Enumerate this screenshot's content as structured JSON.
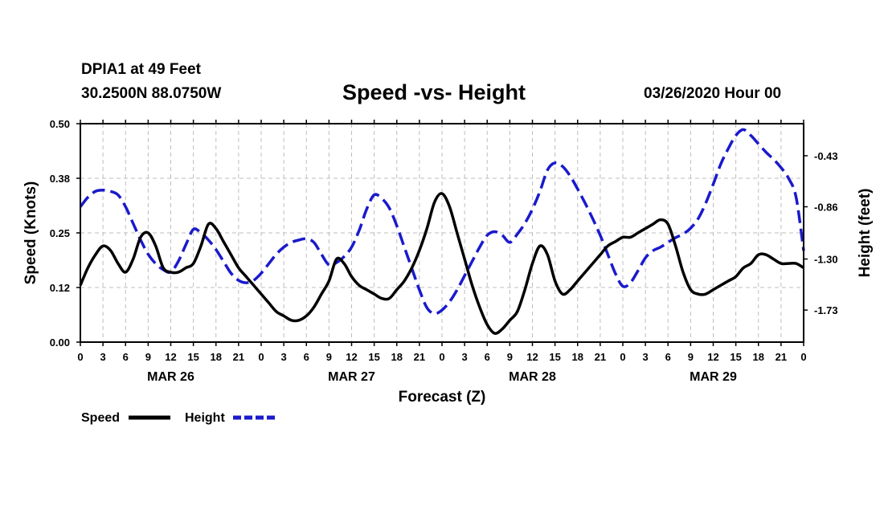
{
  "header": {
    "station": "DPIA1 at 49 Feet",
    "coords": "30.2500N 88.0750W",
    "title": "Speed -vs- Height",
    "run": "03/26/2020 Hour 00"
  },
  "colors": {
    "speed": "#000000",
    "height": "#1a1acc",
    "grid": "#bdbdbd"
  },
  "chart_data": {
    "type": "line",
    "title": "Speed -vs- Height",
    "xlabel": "Forecast (Z)",
    "ylabel": "Speed (Knots)",
    "y2label": "Height (feet)",
    "xlim": [
      0,
      96
    ],
    "ylim": [
      0,
      0.5
    ],
    "y2lim": [
      -2.0,
      -0.16
    ],
    "x_tick_hours": [
      0,
      3,
      6,
      9,
      12,
      15,
      18,
      21,
      24,
      27,
      30,
      33,
      36,
      39,
      42,
      45,
      48,
      51,
      54,
      57,
      60,
      63,
      66,
      69,
      72,
      75,
      78,
      81,
      84,
      87,
      90,
      93,
      96
    ],
    "x_tick_labels": [
      "0",
      "3",
      "6",
      "9",
      "12",
      "15",
      "18",
      "21",
      "0",
      "3",
      "6",
      "9",
      "12",
      "15",
      "18",
      "21",
      "0",
      "3",
      "6",
      "9",
      "12",
      "15",
      "18",
      "21",
      "0",
      "3",
      "6",
      "9",
      "12",
      "15",
      "18",
      "21",
      "0"
    ],
    "day_labels": [
      {
        "hour": 12,
        "text": "MAR 26"
      },
      {
        "hour": 36,
        "text": "MAR 27"
      },
      {
        "hour": 60,
        "text": "MAR 28"
      },
      {
        "hour": 84,
        "text": "MAR 29"
      }
    ],
    "y_ticks": [
      0.0,
      0.125,
      0.25,
      0.375,
      0.5
    ],
    "y_tick_labels": [
      "0.00",
      "0.12",
      "0.25",
      "0.38",
      "0.50"
    ],
    "y2_ticks": [
      -1.73,
      -1.3,
      -0.86,
      -0.43
    ],
    "y2_tick_labels": [
      "-1.73",
      "-1.30",
      "-0.86",
      "-0.43"
    ],
    "grid": true,
    "legend": [
      "Speed",
      "Height"
    ],
    "series": [
      {
        "name": "Speed",
        "axis": "left",
        "style": "solid",
        "x": [
          0,
          1,
          2,
          3,
          4,
          5,
          6,
          7,
          8,
          9,
          10,
          11,
          12,
          13,
          14,
          15,
          16,
          17,
          18,
          19,
          20,
          21,
          22,
          23,
          24,
          25,
          26,
          27,
          28,
          29,
          30,
          31,
          32,
          33,
          34,
          35,
          36,
          37,
          38,
          39,
          40,
          41,
          42,
          43,
          44,
          45,
          46,
          47,
          48,
          49,
          50,
          51,
          52,
          53,
          54,
          55,
          56,
          57,
          58,
          59,
          60,
          61,
          62,
          63,
          64,
          65,
          66,
          67,
          68,
          69,
          70,
          71,
          72,
          73,
          74,
          75,
          76,
          77,
          78,
          79,
          80,
          81,
          82,
          83,
          84,
          85,
          86,
          87,
          88,
          89,
          90,
          91,
          92,
          93,
          94,
          95,
          96
        ],
        "values": [
          0.13,
          0.17,
          0.2,
          0.22,
          0.21,
          0.18,
          0.16,
          0.19,
          0.24,
          0.25,
          0.22,
          0.17,
          0.16,
          0.16,
          0.17,
          0.18,
          0.22,
          0.27,
          0.26,
          0.23,
          0.2,
          0.17,
          0.15,
          0.13,
          0.11,
          0.09,
          0.07,
          0.06,
          0.05,
          0.05,
          0.06,
          0.08,
          0.11,
          0.14,
          0.19,
          0.18,
          0.15,
          0.13,
          0.12,
          0.11,
          0.1,
          0.1,
          0.12,
          0.14,
          0.17,
          0.21,
          0.26,
          0.32,
          0.34,
          0.31,
          0.25,
          0.19,
          0.13,
          0.08,
          0.04,
          0.02,
          0.03,
          0.05,
          0.07,
          0.12,
          0.18,
          0.22,
          0.2,
          0.14,
          0.11,
          0.12,
          0.14,
          0.16,
          0.18,
          0.2,
          0.22,
          0.23,
          0.24,
          0.24,
          0.25,
          0.26,
          0.27,
          0.28,
          0.27,
          0.22,
          0.16,
          0.12,
          0.11,
          0.11,
          0.12,
          0.13,
          0.14,
          0.15,
          0.17,
          0.18,
          0.2,
          0.2,
          0.19,
          0.18,
          0.18,
          0.18,
          0.17
        ]
      },
      {
        "name": "Height",
        "axis": "right",
        "style": "dashed",
        "x": [
          0,
          1,
          2,
          3,
          4,
          5,
          6,
          7,
          8,
          9,
          10,
          11,
          12,
          13,
          14,
          15,
          16,
          17,
          18,
          19,
          20,
          21,
          22,
          23,
          24,
          25,
          26,
          27,
          28,
          29,
          30,
          31,
          32,
          33,
          34,
          35,
          36,
          37,
          38,
          39,
          40,
          41,
          42,
          43,
          44,
          45,
          46,
          47,
          48,
          49,
          50,
          51,
          52,
          53,
          54,
          55,
          56,
          57,
          58,
          59,
          60,
          61,
          62,
          63,
          64,
          65,
          66,
          67,
          68,
          69,
          70,
          71,
          72,
          73,
          74,
          75,
          76,
          77,
          78,
          79,
          80,
          81,
          82,
          83,
          84,
          85,
          86,
          87,
          88,
          89,
          90,
          91,
          92,
          93,
          94,
          95,
          96
        ],
        "values": [
          -0.86,
          -0.78,
          -0.73,
          -0.72,
          -0.73,
          -0.76,
          -0.86,
          -1.0,
          -1.14,
          -1.26,
          -1.34,
          -1.39,
          -1.41,
          -1.32,
          -1.18,
          -1.05,
          -1.08,
          -1.14,
          -1.22,
          -1.32,
          -1.42,
          -1.48,
          -1.5,
          -1.48,
          -1.42,
          -1.34,
          -1.26,
          -1.2,
          -1.16,
          -1.14,
          -1.13,
          -1.16,
          -1.26,
          -1.35,
          -1.33,
          -1.28,
          -1.2,
          -1.06,
          -0.88,
          -0.76,
          -0.79,
          -0.87,
          -1.02,
          -1.2,
          -1.38,
          -1.56,
          -1.71,
          -1.76,
          -1.73,
          -1.66,
          -1.56,
          -1.44,
          -1.32,
          -1.2,
          -1.1,
          -1.07,
          -1.1,
          -1.16,
          -1.09,
          -1.0,
          -0.88,
          -0.73,
          -0.55,
          -0.49,
          -0.52,
          -0.6,
          -0.71,
          -0.83,
          -0.96,
          -1.1,
          -1.26,
          -1.42,
          -1.53,
          -1.5,
          -1.4,
          -1.29,
          -1.23,
          -1.2,
          -1.16,
          -1.12,
          -1.09,
          -1.04,
          -0.96,
          -0.83,
          -0.67,
          -0.5,
          -0.37,
          -0.26,
          -0.21,
          -0.26,
          -0.33,
          -0.4,
          -0.46,
          -0.53,
          -0.62,
          -0.78,
          -1.23
        ]
      }
    ]
  }
}
